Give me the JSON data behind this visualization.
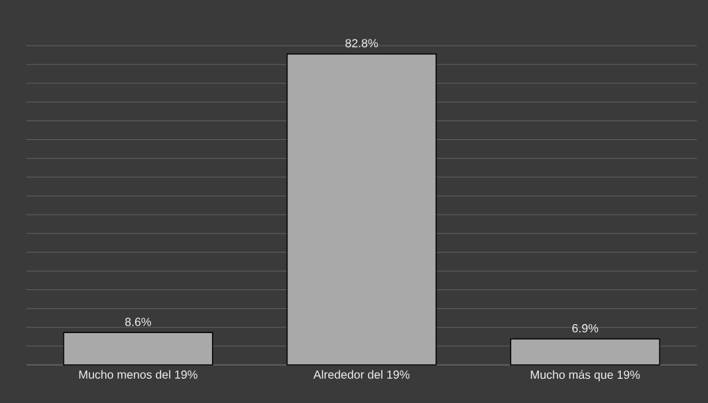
{
  "chart_data": {
    "type": "bar",
    "categories": [
      "Mucho menos del 19%",
      "Alrededor del 19%",
      "Mucho más que 19%"
    ],
    "values": [
      8.6,
      82.8,
      6.9
    ],
    "value_labels": [
      "8.6%",
      "82.8%",
      "6.9%"
    ],
    "color": "#a9a9a9",
    "tick_labels": "x",
    "grid": "y"
  }
}
